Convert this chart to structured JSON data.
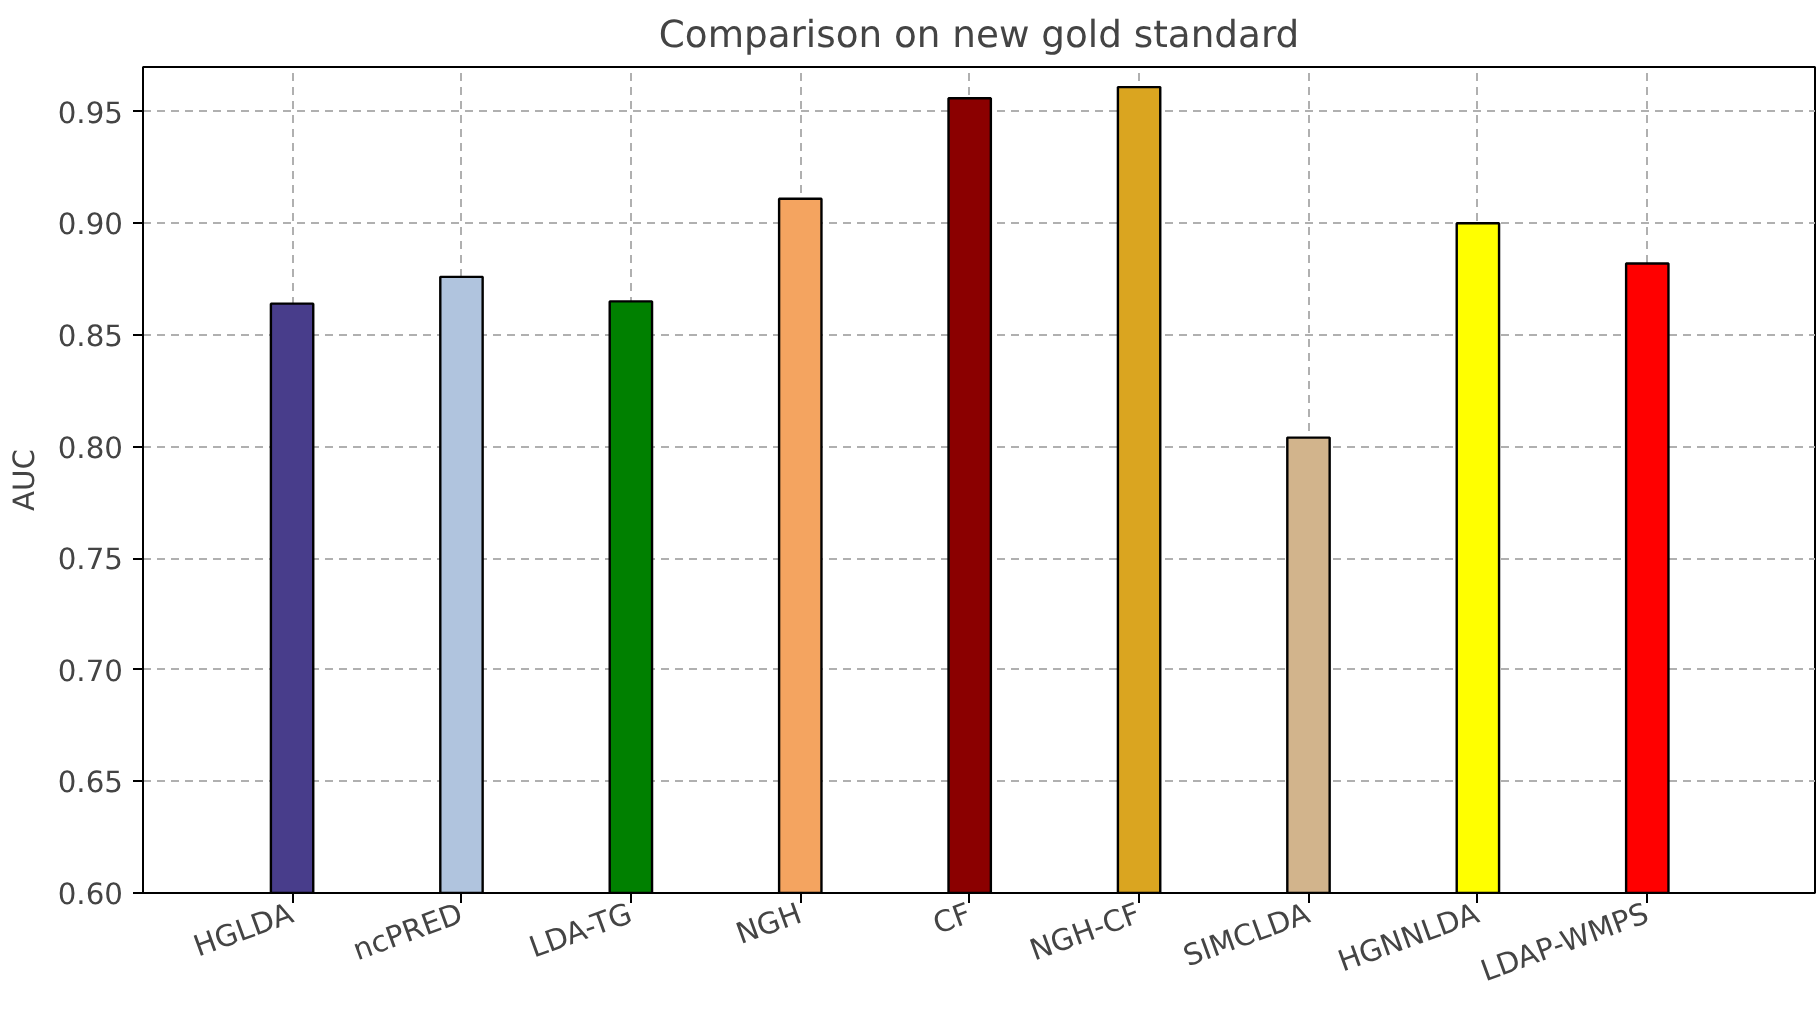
{
  "chart_data": {
    "type": "bar",
    "title": "Comparison on new gold standard",
    "ylabel": "AUC",
    "categories": [
      "HGLDA",
      "ncPRED",
      "LDA-TG",
      "NGH",
      "CF",
      "NGH-CF",
      "SIMCLDA",
      "HGNNLDA",
      "LDAP-WMPS"
    ],
    "values": [
      0.864,
      0.876,
      0.865,
      0.911,
      0.956,
      0.961,
      0.804,
      0.9,
      0.882
    ],
    "colors": [
      "#483d8b",
      "#b0c4de",
      "#008000",
      "#f4a460",
      "#8b0000",
      "#daa520",
      "#d2b48c",
      "#ffff00",
      "#ff0000"
    ],
    "ylim": [
      0.6,
      0.97
    ],
    "yticks": [
      {
        "value": 0.6,
        "label": "0.60"
      },
      {
        "value": 0.65,
        "label": "0.65"
      },
      {
        "value": 0.7,
        "label": "0.70"
      },
      {
        "value": 0.75,
        "label": "0.75"
      },
      {
        "value": 0.8,
        "label": "0.80"
      },
      {
        "value": 0.85,
        "label": "0.85"
      },
      {
        "value": 0.9,
        "label": "0.90"
      },
      {
        "value": 0.95,
        "label": "0.95"
      }
    ],
    "grid": true,
    "line_style": "dashed"
  }
}
